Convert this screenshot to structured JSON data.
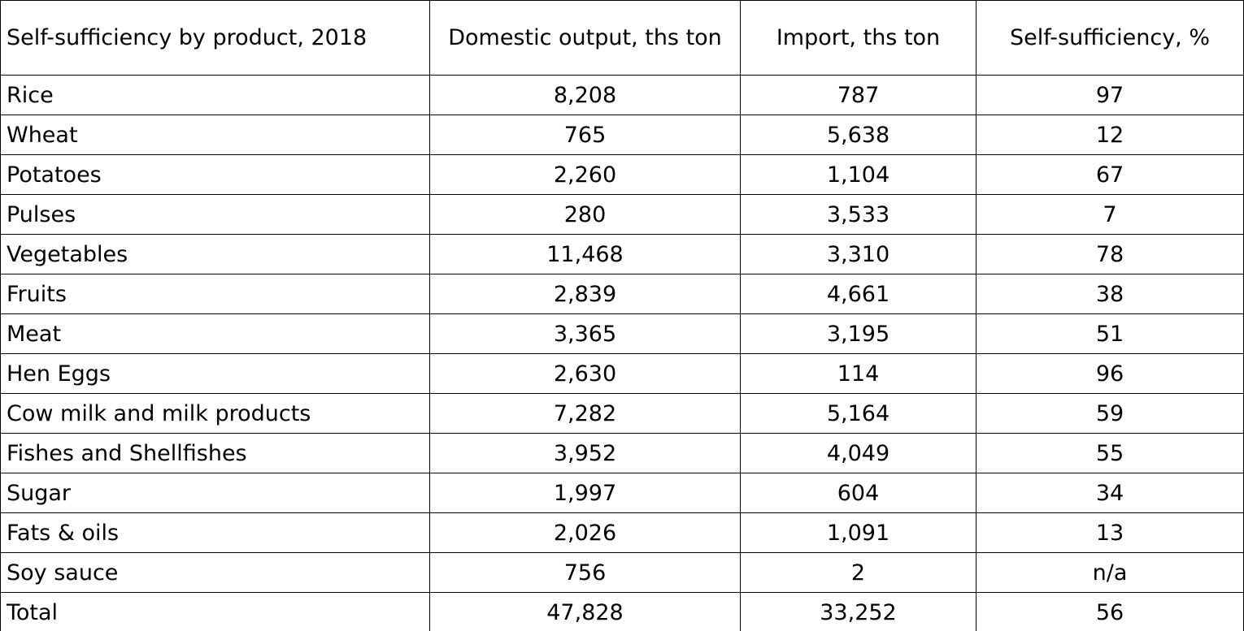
{
  "table": {
    "headers": [
      "Self-sufficiency by product, 2018",
      "Domestic output, ths ton",
      "Import, ths ton",
      "Self-sufficiency, %"
    ],
    "rows": [
      {
        "product": "Rice",
        "domestic": "8,208",
        "import": "787",
        "self_sufficiency": "97"
      },
      {
        "product": "Wheat",
        "domestic": "765",
        "import": "5,638",
        "self_sufficiency": "12"
      },
      {
        "product": "Potatoes",
        "domestic": "2,260",
        "import": "1,104",
        "self_sufficiency": "67"
      },
      {
        "product": "Pulses",
        "domestic": "280",
        "import": "3,533",
        "self_sufficiency": "7"
      },
      {
        "product": "Vegetables",
        "domestic": "11,468",
        "import": "3,310",
        "self_sufficiency": "78"
      },
      {
        "product": "Fruits",
        "domestic": "2,839",
        "import": "4,661",
        "self_sufficiency": "38"
      },
      {
        "product": "Meat",
        "domestic": "3,365",
        "import": "3,195",
        "self_sufficiency": "51"
      },
      {
        "product": "Hen Eggs",
        "domestic": "2,630",
        "import": "114",
        "self_sufficiency": "96"
      },
      {
        "product": "Cow milk and milk products",
        "domestic": "7,282",
        "import": "5,164",
        "self_sufficiency": "59"
      },
      {
        "product": "Fishes and Shellfishes",
        "domestic": "3,952",
        "import": "4,049",
        "self_sufficiency": "55"
      },
      {
        "product": "Sugar",
        "domestic": "1,997",
        "import": "604",
        "self_sufficiency": "34"
      },
      {
        "product": "Fats & oils",
        "domestic": "2,026",
        "import": "1,091",
        "self_sufficiency": "13"
      },
      {
        "product": "Soy sauce",
        "domestic": "756",
        "import": "2",
        "self_sufficiency": "n/a"
      },
      {
        "product": "Total",
        "domestic": "47,828",
        "import": "33,252",
        "self_sufficiency": "56"
      }
    ]
  }
}
